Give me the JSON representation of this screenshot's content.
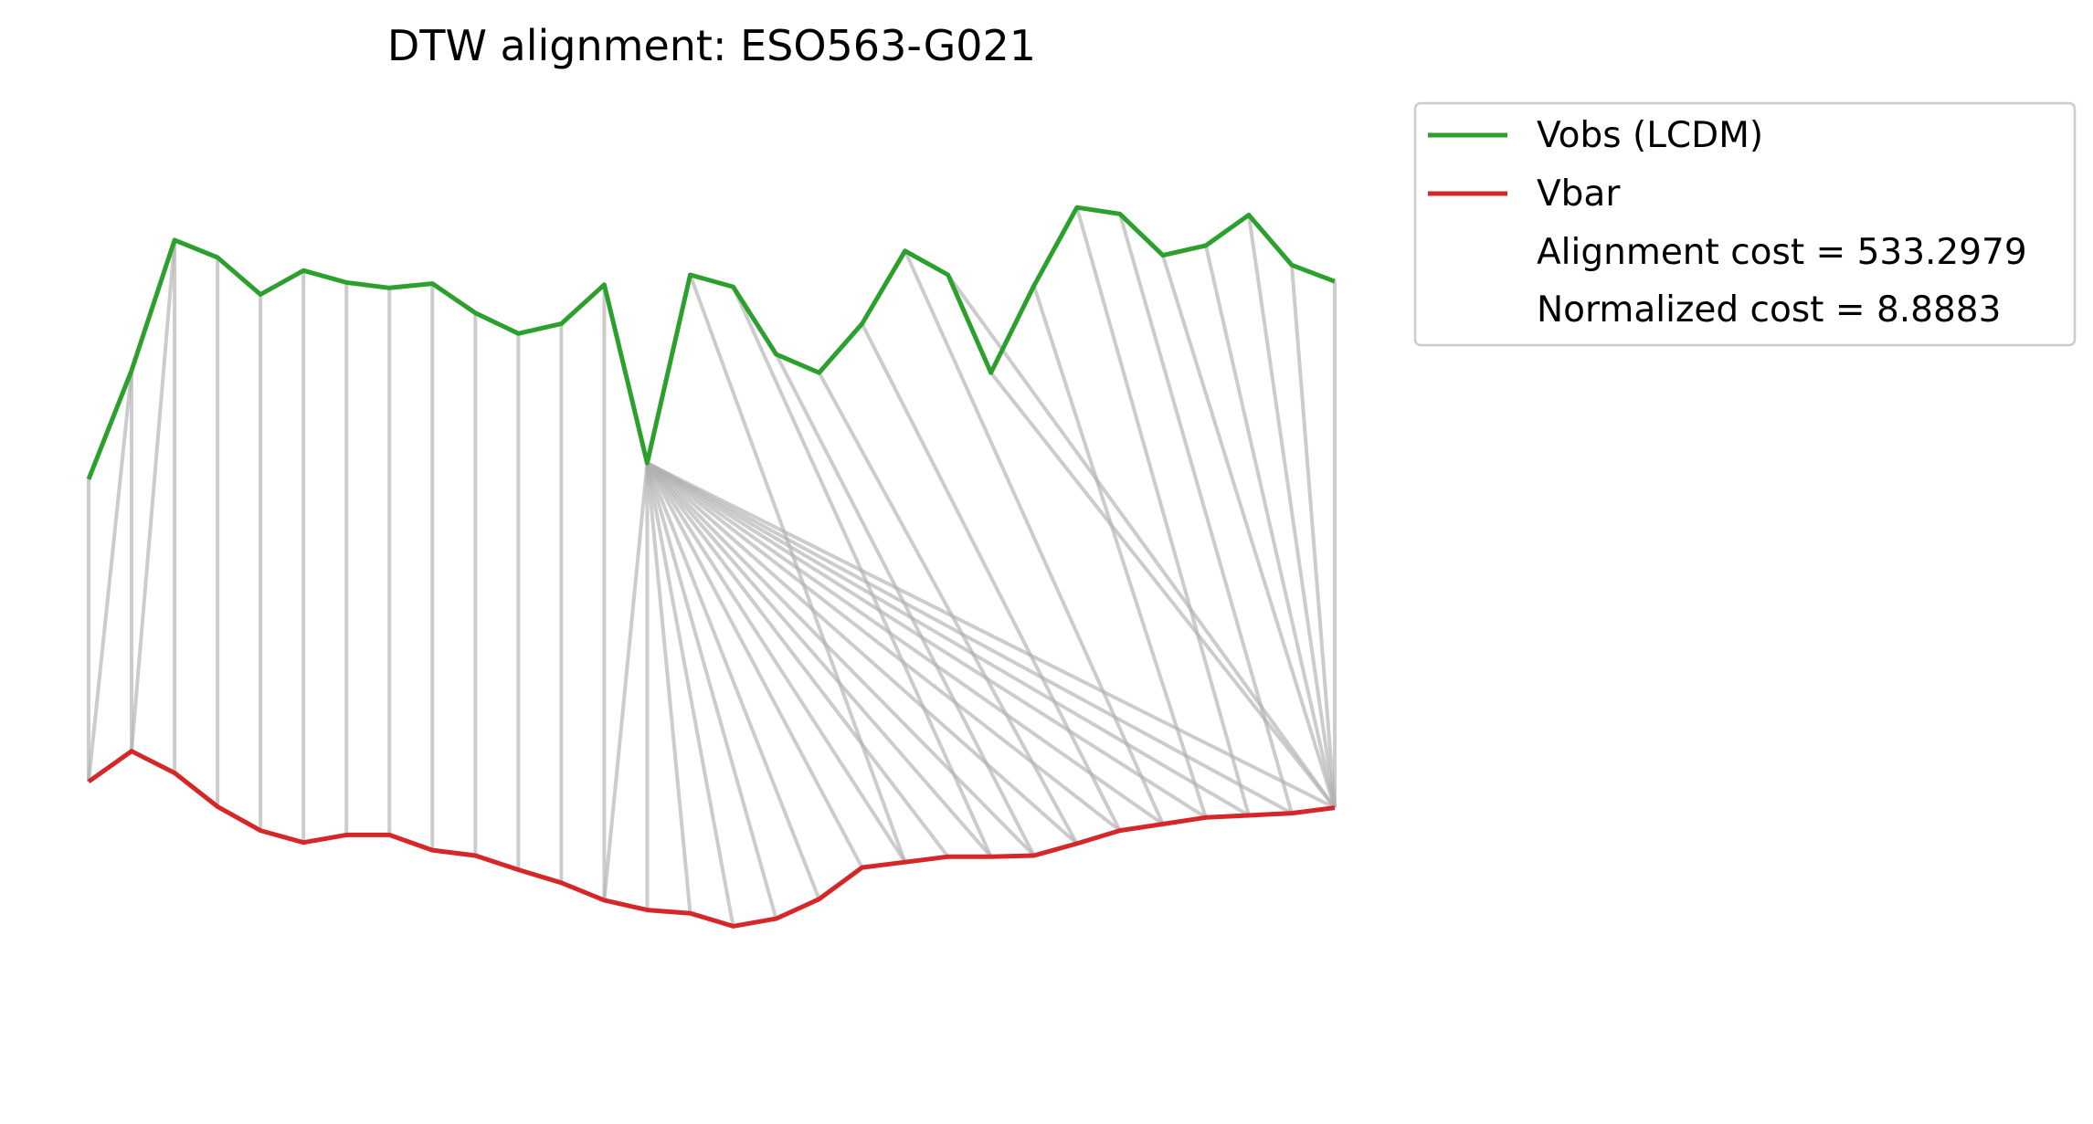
{
  "chart_data": {
    "type": "line",
    "title": "DTW alignment: ESO563-G021",
    "xlabel": "",
    "ylabel": "",
    "axes_visible": false,
    "grid": false,
    "legend_placement": "outside-top-right",
    "colors": {
      "vobs": "#2ca02c",
      "vbar": "#d62728",
      "alignment": "#b0b0b0"
    },
    "x": [
      0,
      1,
      2,
      3,
      4,
      5,
      6,
      7,
      8,
      9,
      10,
      11,
      12,
      13,
      14,
      15,
      16,
      17,
      18,
      19,
      20,
      21,
      22,
      23,
      24,
      25,
      26,
      27,
      28,
      29
    ],
    "ylim": [
      -2.2,
      6.7
    ],
    "series": [
      {
        "name": "Vobs (LCDM)",
        "values": [
          3.3,
          4.3,
          5.5,
          5.34,
          5.0,
          5.22,
          5.11,
          5.06,
          5.1,
          4.83,
          4.64,
          4.73,
          5.09,
          3.45,
          5.18,
          5.07,
          4.45,
          4.28,
          4.73,
          5.4,
          5.18,
          4.28,
          5.08,
          5.8,
          5.74,
          5.36,
          5.45,
          5.73,
          5.27,
          5.12
        ]
      },
      {
        "name": "Vbar",
        "values": [
          0.52,
          0.8,
          0.6,
          0.29,
          0.07,
          -0.04,
          0.03,
          0.03,
          -0.11,
          -0.16,
          -0.29,
          -0.41,
          -0.57,
          -0.66,
          -0.69,
          -0.81,
          -0.74,
          -0.56,
          -0.27,
          -0.22,
          -0.17,
          -0.17,
          -0.16,
          -0.05,
          0.07,
          0.13,
          0.19,
          0.21,
          0.23,
          0.28
        ]
      }
    ],
    "alignment_pairs": [
      [
        0,
        0
      ],
      [
        1,
        0
      ],
      [
        1,
        1
      ],
      [
        2,
        1
      ],
      [
        2,
        2
      ],
      [
        3,
        3
      ],
      [
        4,
        4
      ],
      [
        5,
        5
      ],
      [
        6,
        6
      ],
      [
        7,
        7
      ],
      [
        8,
        8
      ],
      [
        9,
        9
      ],
      [
        10,
        10
      ],
      [
        11,
        11
      ],
      [
        12,
        12
      ],
      [
        13,
        12
      ],
      [
        13,
        13
      ],
      [
        13,
        14
      ],
      [
        13,
        15
      ],
      [
        13,
        16
      ],
      [
        13,
        17
      ],
      [
        13,
        18
      ],
      [
        13,
        19
      ],
      [
        13,
        20
      ],
      [
        13,
        21
      ],
      [
        13,
        22
      ],
      [
        13,
        23
      ],
      [
        13,
        24
      ],
      [
        13,
        25
      ],
      [
        13,
        26
      ],
      [
        13,
        27
      ],
      [
        13,
        28
      ],
      [
        13,
        29
      ],
      [
        14,
        19
      ],
      [
        15,
        21
      ],
      [
        16,
        22
      ],
      [
        17,
        23
      ],
      [
        18,
        24
      ],
      [
        19,
        25
      ],
      [
        20,
        29
      ],
      [
        21,
        29
      ],
      [
        22,
        26
      ],
      [
        23,
        27
      ],
      [
        24,
        28
      ],
      [
        25,
        29
      ],
      [
        26,
        29
      ],
      [
        27,
        29
      ],
      [
        28,
        29
      ],
      [
        29,
        29
      ]
    ],
    "legend": [
      {
        "label": "Vobs (LCDM)",
        "series": "vobs"
      },
      {
        "label": "Vbar",
        "series": "vbar"
      },
      {
        "label": "Alignment cost = 533.2979",
        "series": null
      },
      {
        "label": "Normalized cost = 8.8883",
        "series": null
      }
    ]
  }
}
